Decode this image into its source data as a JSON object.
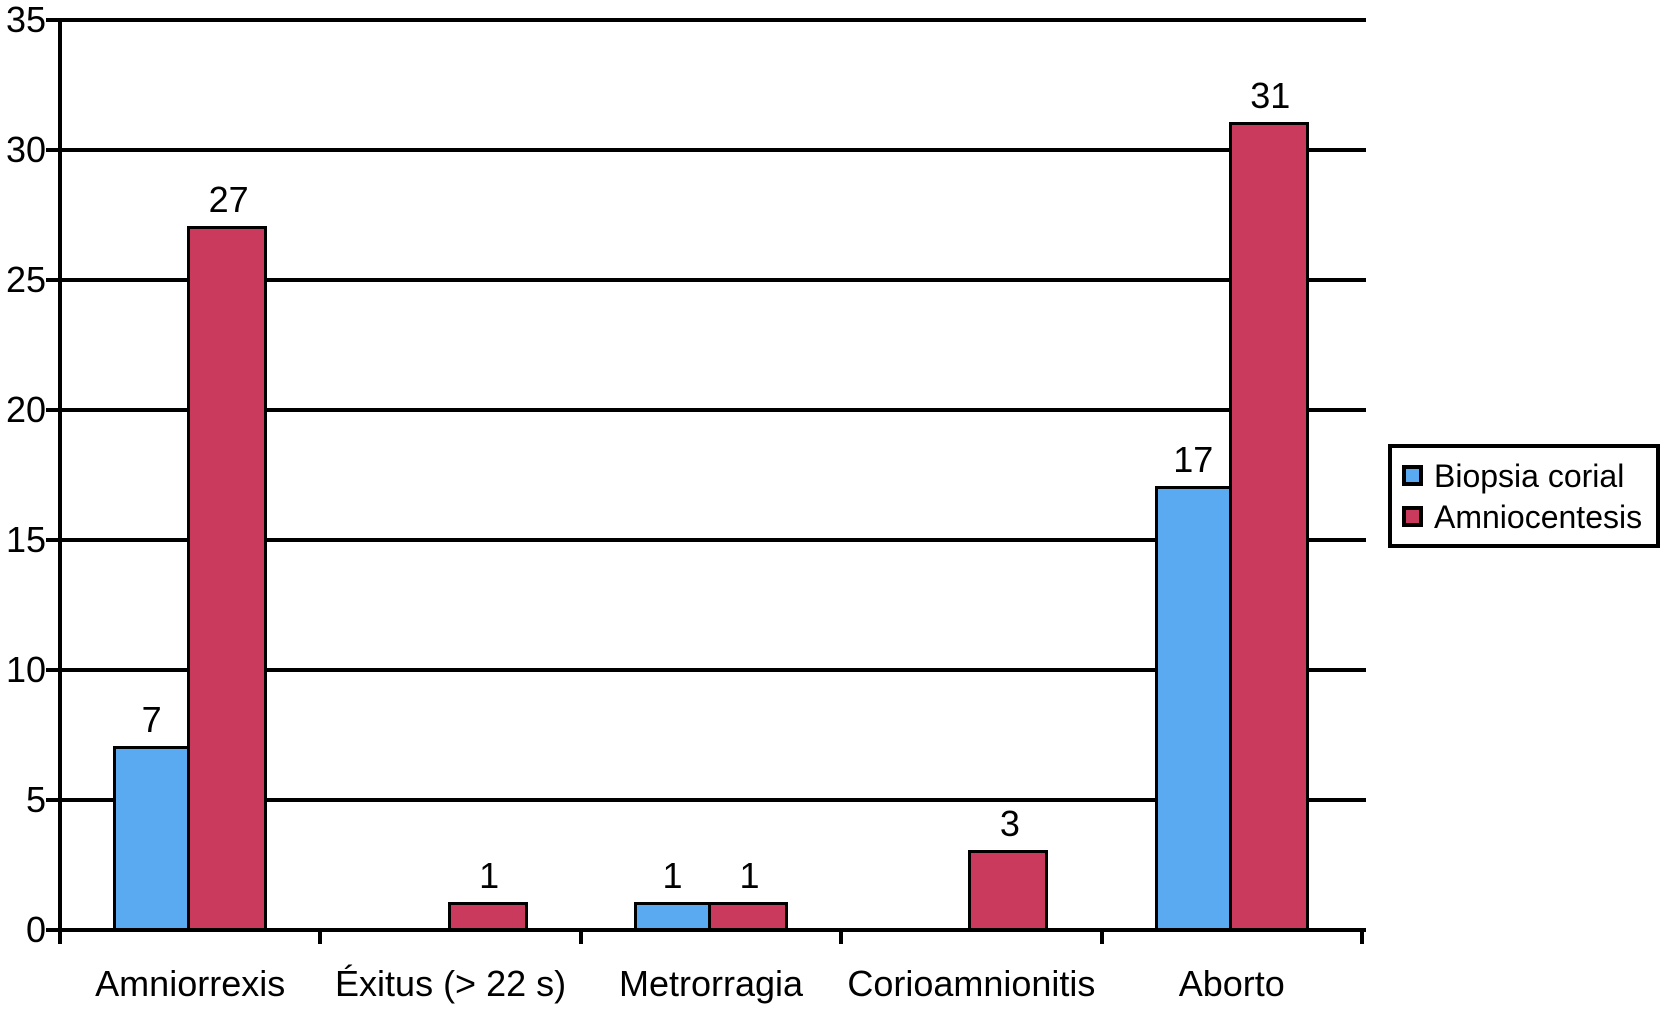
{
  "chart_data": {
    "type": "bar",
    "title": "",
    "xlabel": "",
    "ylabel": "",
    "categories": [
      "Amniorrexis",
      "Éxitus (> 22 s)",
      "Metrorragia",
      "Corioamnionitis",
      "Aborto"
    ],
    "series": [
      {
        "name": "Biopsia corial",
        "color": "#5AAAF2",
        "values": [
          7,
          0,
          1,
          0,
          17
        ]
      },
      {
        "name": "Amniocentesis",
        "color": "#C93A5C",
        "values": [
          27,
          1,
          1,
          3,
          31
        ]
      }
    ],
    "ylim": [
      0,
      35
    ],
    "yticks": [
      0,
      5,
      10,
      15,
      20,
      25,
      30,
      35
    ],
    "grid": true,
    "data_labels": "value shown above each bar; bars with value 0 are omitted",
    "legend_position": "right of plot, boxed"
  },
  "colors": {
    "background": "#FFFFFF",
    "axis_and_grid": "#000000",
    "text": "#000000",
    "series_biopsia_corial": "#5AAAF2",
    "series_amniocentesis": "#C93A5C"
  }
}
